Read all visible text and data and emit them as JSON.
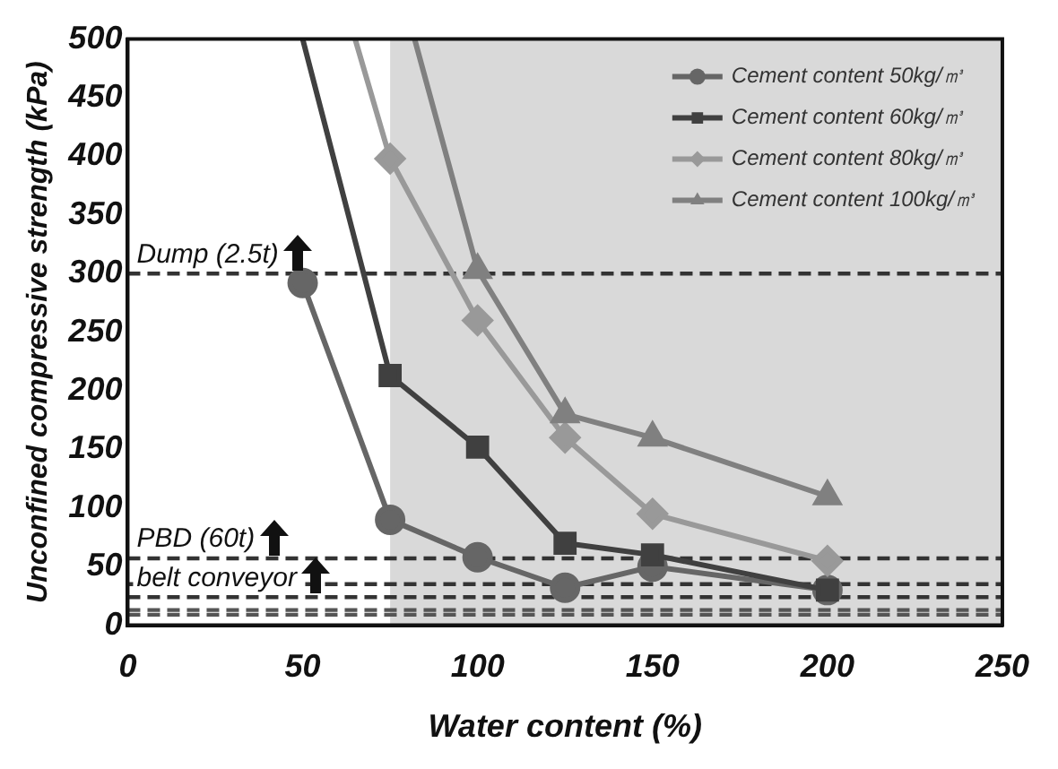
{
  "chart_data": {
    "type": "line",
    "xlabel": "Water content (%)",
    "ylabel": "Unconfined compressive strength (kPa)",
    "xlim": [
      0,
      250
    ],
    "xticks": [
      0,
      50,
      100,
      150,
      200,
      250
    ],
    "ylim": [
      0,
      500
    ],
    "yticks": [
      0,
      50,
      100,
      150,
      200,
      250,
      300,
      350,
      400,
      450,
      500
    ],
    "grid": false,
    "legend": "top right",
    "line_style": "solid",
    "series": [
      {
        "name": "Cement content 50kg/㎥",
        "color": "#666666",
        "marker": "circle",
        "x": [
          50,
          75,
          100,
          125,
          150,
          200
        ],
        "values": [
          292,
          90,
          58,
          32,
          50,
          30
        ]
      },
      {
        "name": "Cement content 60kg/㎥",
        "color": "#404040",
        "marker": "square",
        "x": [
          50,
          75,
          100,
          125,
          150,
          200
        ],
        "values": [
          500,
          213,
          152,
          70,
          60,
          30
        ]
      },
      {
        "name": "Cement content 80kg/㎥",
        "color": "#999999",
        "marker": "diamond",
        "x": [
          65,
          75,
          100,
          125,
          150,
          200
        ],
        "values": [
          500,
          398,
          260,
          160,
          95,
          55
        ]
      },
      {
        "name": "Cement content 100kg/㎥",
        "color": "#808080",
        "marker": "triangle",
        "x": [
          82,
          100,
          125,
          150,
          200
        ],
        "values": [
          500,
          303,
          180,
          160,
          110
        ]
      }
    ],
    "bands": [
      {
        "axis": "x",
        "from": 75,
        "to": 250,
        "color": "#d9d9d9"
      }
    ],
    "ref_lines": [
      {
        "axis": "y",
        "value": 300,
        "label": "Dump (2.5t)",
        "color": "#333333",
        "line_style": "dashed"
      },
      {
        "axis": "y",
        "value": 57,
        "label": "PBD (60t)",
        "color": "#333333",
        "line_style": "dashed"
      },
      {
        "axis": "y",
        "value": 35,
        "color": "#333333",
        "line_style": "dashed"
      },
      {
        "axis": "y",
        "value": 24,
        "label": "belt conveyor",
        "color": "#333333",
        "line_style": "dashed"
      },
      {
        "axis": "y",
        "value": 13,
        "color": "#555555",
        "line_style": "dashed"
      },
      {
        "axis": "y",
        "value": 9,
        "color": "#555555",
        "line_style": "dashed"
      }
    ]
  }
}
